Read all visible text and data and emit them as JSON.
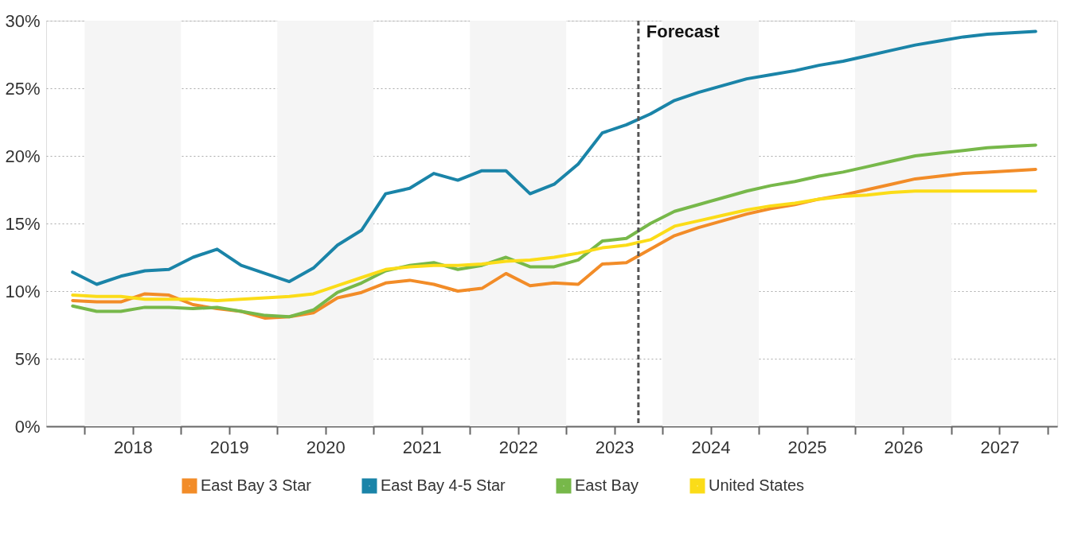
{
  "chart_data": {
    "type": "line",
    "x": [
      2017.875,
      2018.125,
      2018.375,
      2018.625,
      2018.875,
      2019.125,
      2019.375,
      2019.625,
      2019.875,
      2020.125,
      2020.375,
      2020.625,
      2020.875,
      2021.125,
      2021.375,
      2021.625,
      2021.875,
      2022.125,
      2022.375,
      2022.625,
      2022.875,
      2023.125,
      2023.375,
      2023.625,
      2023.875,
      2024.125,
      2024.375,
      2024.625,
      2024.875,
      2025.125,
      2025.375,
      2025.625,
      2025.875,
      2026.125,
      2026.375,
      2026.625,
      2026.875,
      2027.125,
      2027.375,
      2027.625,
      2027.875
    ],
    "series": [
      {
        "name": "East Bay 3 Star",
        "color": "#f28c28",
        "values": [
          9.3,
          9.2,
          9.2,
          9.8,
          9.7,
          9.0,
          8.7,
          8.5,
          8.0,
          8.1,
          8.4,
          9.5,
          9.9,
          10.6,
          10.8,
          10.5,
          10.0,
          10.2,
          11.3,
          10.4,
          10.6,
          10.5,
          12.0,
          12.1,
          13.1,
          14.1,
          14.7,
          15.2,
          15.7,
          16.1,
          16.4,
          16.8,
          17.1,
          17.5,
          17.9,
          18.3,
          18.5,
          18.7,
          18.8,
          18.9,
          19.0
        ]
      },
      {
        "name": "East Bay 4-5 Star",
        "color": "#1a84a8",
        "values": [
          11.4,
          10.5,
          11.1,
          11.5,
          11.6,
          12.5,
          13.1,
          11.9,
          11.3,
          10.7,
          11.7,
          13.4,
          14.5,
          17.2,
          17.6,
          18.7,
          18.2,
          18.9,
          18.9,
          17.2,
          17.9,
          19.4,
          21.7,
          22.3,
          23.1,
          24.1,
          24.7,
          25.2,
          25.7,
          26.0,
          26.3,
          26.7,
          27.0,
          27.4,
          27.8,
          28.2,
          28.5,
          28.8,
          29.0,
          29.1,
          29.2
        ]
      },
      {
        "name": "East Bay",
        "color": "#77b84a",
        "values": [
          8.9,
          8.5,
          8.5,
          8.8,
          8.8,
          8.7,
          8.8,
          8.5,
          8.2,
          8.1,
          8.6,
          9.9,
          10.6,
          11.5,
          11.9,
          12.1,
          11.6,
          11.9,
          12.5,
          11.8,
          11.8,
          12.3,
          13.7,
          13.9,
          15.0,
          15.9,
          16.4,
          16.9,
          17.4,
          17.8,
          18.1,
          18.5,
          18.8,
          19.2,
          19.6,
          20.0,
          20.2,
          20.4,
          20.6,
          20.7,
          20.8
        ]
      },
      {
        "name": "United States",
        "color": "#fbdc18",
        "values": [
          9.7,
          9.6,
          9.6,
          9.4,
          9.4,
          9.4,
          9.3,
          9.4,
          9.5,
          9.6,
          9.8,
          10.4,
          11.0,
          11.6,
          11.8,
          11.9,
          11.9,
          12.0,
          12.2,
          12.3,
          12.5,
          12.8,
          13.2,
          13.4,
          13.8,
          14.8,
          15.2,
          15.6,
          16.0,
          16.3,
          16.5,
          16.8,
          17.0,
          17.1,
          17.3,
          17.4,
          17.4,
          17.4,
          17.4,
          17.4,
          17.4
        ]
      }
    ],
    "xlim": [
      2017.6,
      2028.1
    ],
    "xticks": [
      {
        "value": 2018,
        "label": null
      },
      {
        "value": 2018.5,
        "label": "2018"
      },
      {
        "value": 2019,
        "label": null
      },
      {
        "value": 2019.5,
        "label": "2019"
      },
      {
        "value": 2020,
        "label": null
      },
      {
        "value": 2020.5,
        "label": "2020"
      },
      {
        "value": 2021,
        "label": null
      },
      {
        "value": 2021.5,
        "label": "2021"
      },
      {
        "value": 2022,
        "label": null
      },
      {
        "value": 2022.5,
        "label": "2022"
      },
      {
        "value": 2023,
        "label": null
      },
      {
        "value": 2023.5,
        "label": "2023"
      },
      {
        "value": 2024,
        "label": null
      },
      {
        "value": 2024.5,
        "label": "2024"
      },
      {
        "value": 2025,
        "label": null
      },
      {
        "value": 2025.5,
        "label": "2025"
      },
      {
        "value": 2026,
        "label": null
      },
      {
        "value": 2026.5,
        "label": "2026"
      },
      {
        "value": 2027,
        "label": null
      },
      {
        "value": 2027.5,
        "label": "2027"
      },
      {
        "value": 2028,
        "label": null
      }
    ],
    "ylim": [
      0,
      30
    ],
    "yticks": [
      {
        "value": 0,
        "label": "0%"
      },
      {
        "value": 5,
        "label": "5%"
      },
      {
        "value": 10,
        "label": "10%"
      },
      {
        "value": 15,
        "label": "15%"
      },
      {
        "value": 20,
        "label": "20%"
      },
      {
        "value": 25,
        "label": "25%"
      },
      {
        "value": 30,
        "label": "30%"
      }
    ],
    "ref_lines": [
      {
        "axis": "x",
        "value": 2023.75,
        "label": "Forecast",
        "color": "#555555",
        "line_style": "dashed"
      }
    ],
    "bands": [
      {
        "axis": "x",
        "from": 2018,
        "to": 2019,
        "color": "#f5f5f5"
      },
      {
        "axis": "x",
        "from": 2020,
        "to": 2021,
        "color": "#f5f5f5"
      },
      {
        "axis": "x",
        "from": 2022,
        "to": 2023,
        "color": "#f5f5f5"
      },
      {
        "axis": "x",
        "from": 2024,
        "to": 2025,
        "color": "#f5f5f5"
      },
      {
        "axis": "x",
        "from": 2026,
        "to": 2027,
        "color": "#f5f5f5"
      }
    ],
    "grid": "y",
    "legend": "bottom",
    "marker": "none",
    "line_style": "solid"
  }
}
